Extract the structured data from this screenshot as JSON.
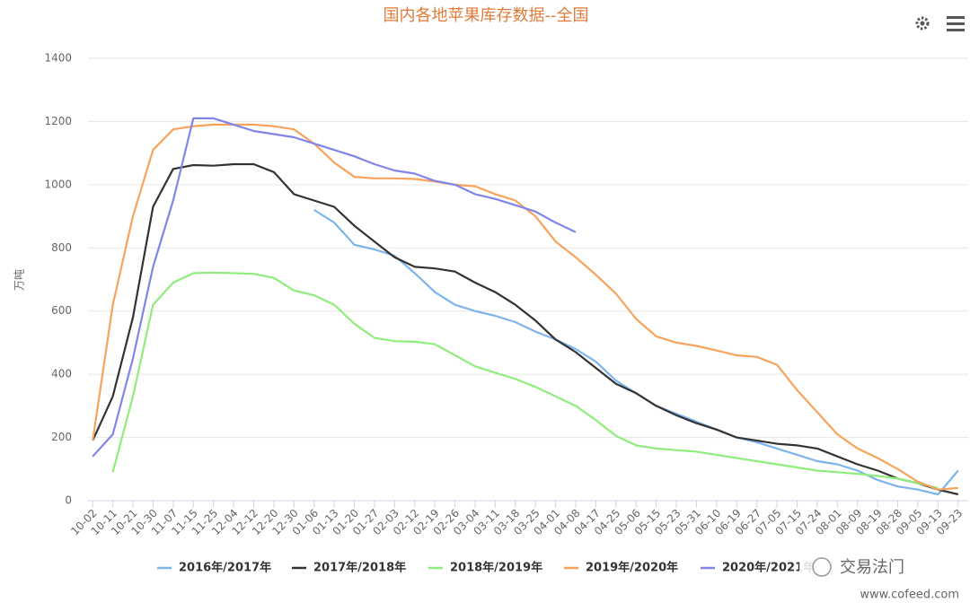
{
  "chart_data": {
    "type": "line",
    "title": "国内各地苹果库存数据--全国",
    "y_label": "万吨",
    "categories": [
      "10-02",
      "10-11",
      "10-21",
      "10-30",
      "11-07",
      "11-15",
      "11-25",
      "12-04",
      "12-12",
      "12-20",
      "12-30",
      "01-06",
      "01-13",
      "01-20",
      "01-27",
      "02-03",
      "02-12",
      "02-19",
      "02-26",
      "03-04",
      "03-11",
      "03-18",
      "03-25",
      "04-01",
      "04-08",
      "04-17",
      "04-25",
      "05-06",
      "05-15",
      "05-23",
      "05-31",
      "06-10",
      "06-19",
      "06-27",
      "07-05",
      "07-15",
      "07-24",
      "08-01",
      "08-09",
      "08-19",
      "08-28",
      "09-05",
      "09-13",
      "09-23"
    ],
    "series": [
      {
        "name": "2016年/2017年",
        "color": "#7cb5ec",
        "values": [
          null,
          null,
          null,
          null,
          null,
          null,
          null,
          null,
          null,
          null,
          null,
          920,
          880,
          810,
          795,
          775,
          720,
          660,
          620,
          600,
          585,
          565,
          535,
          510,
          480,
          440,
          380,
          340,
          300,
          275,
          250,
          225,
          200,
          185,
          165,
          145,
          125,
          115,
          95,
          65,
          45,
          35,
          20,
          95
        ]
      },
      {
        "name": "2017年/2018年",
        "color": "#333333",
        "values": [
          190,
          330,
          580,
          930,
          1050,
          1062,
          1060,
          1065,
          1065,
          1040,
          970,
          950,
          930,
          870,
          820,
          770,
          740,
          735,
          725,
          690,
          660,
          620,
          570,
          510,
          470,
          420,
          370,
          340,
          300,
          270,
          245,
          225,
          200,
          190,
          180,
          175,
          165,
          140,
          115,
          95,
          70,
          55,
          35,
          20
        ]
      },
      {
        "name": "2018年/2019年",
        "color": "#90ed7d",
        "values": [
          null,
          90,
          330,
          620,
          690,
          720,
          722,
          720,
          718,
          705,
          665,
          650,
          620,
          560,
          515,
          505,
          503,
          495,
          460,
          425,
          405,
          385,
          360,
          330,
          300,
          255,
          205,
          175,
          165,
          160,
          155,
          145,
          135,
          125,
          115,
          105,
          95,
          90,
          85,
          78,
          70,
          55,
          40,
          null
        ]
      },
      {
        "name": "2019年/2020年",
        "color": "#f7a35c",
        "values": [
          190,
          620,
          900,
          1110,
          1175,
          1185,
          1190,
          1190,
          1190,
          1185,
          1175,
          1130,
          1070,
          1025,
          1020,
          1020,
          1018,
          1010,
          1000,
          995,
          970,
          950,
          900,
          820,
          770,
          715,
          655,
          575,
          520,
          500,
          490,
          475,
          460,
          455,
          430,
          350,
          280,
          210,
          165,
          135,
          100,
          60,
          35,
          40
        ]
      },
      {
        "name": "2020年/2021年",
        "color": "#8085e9",
        "values": [
          140,
          210,
          450,
          740,
          950,
          1210,
          1210,
          1190,
          1170,
          1160,
          1150,
          1130,
          1110,
          1090,
          1065,
          1045,
          1035,
          1012,
          1000,
          970,
          955,
          935,
          915,
          880,
          850,
          null,
          null,
          null,
          null,
          null,
          null,
          null,
          null,
          null,
          null,
          null,
          null,
          null,
          null,
          null,
          null,
          null,
          null,
          null
        ]
      }
    ],
    "ylim": [
      0,
      1400
    ],
    "yticks": [
      0,
      200,
      400,
      600,
      800,
      1000,
      1200,
      1400
    ],
    "grid": true,
    "watermark": {
      "name": "交易法门",
      "url": "www.cofeed.com"
    }
  }
}
